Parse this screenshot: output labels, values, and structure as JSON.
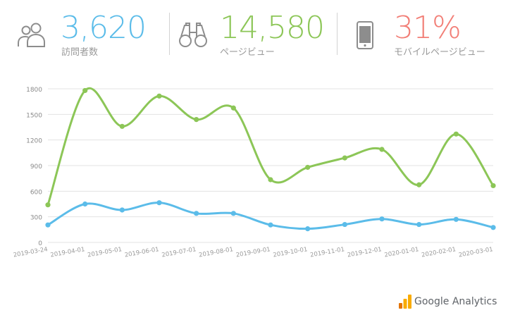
{
  "header": {
    "stats": [
      {
        "value": "3,620",
        "label": "訪問者数",
        "icon": "users-icon",
        "color": "#5bbce9"
      },
      {
        "value": "14,580",
        "label": "ページビュー",
        "icon": "binoculars-icon",
        "color": "#8cc657"
      },
      {
        "value": "31%",
        "label": "モバイルページビュー",
        "icon": "mobile-phone-icon",
        "color": "#f27e76"
      }
    ]
  },
  "branding": {
    "text": "Google Analytics",
    "logo_colors": [
      "#f9ab00",
      "#e37400"
    ]
  },
  "chart_data": {
    "type": "line",
    "x": [
      "2019-03-24",
      "2019-04-01",
      "2019-05-01",
      "2019-06-01",
      "2019-07-01",
      "2019-08-01",
      "2019-09-01",
      "2019-10-01",
      "2019-11-01",
      "2019-12-01",
      "2020-01-01",
      "2020-02-01",
      "2020-03-01"
    ],
    "ylim": [
      0,
      1800
    ],
    "yticks": [
      0,
      300,
      600,
      900,
      1200,
      1500,
      1800
    ],
    "grid": true,
    "series": [
      {
        "color": "#8cc657",
        "values": [
          440,
          1780,
          1360,
          1715,
          1440,
          1575,
          735,
          880,
          990,
          1090,
          675,
          1270,
          665
        ]
      },
      {
        "color": "#5bbce9",
        "values": [
          205,
          450,
          380,
          465,
          340,
          340,
          205,
          160,
          210,
          275,
          210,
          270,
          175
        ]
      }
    ]
  }
}
